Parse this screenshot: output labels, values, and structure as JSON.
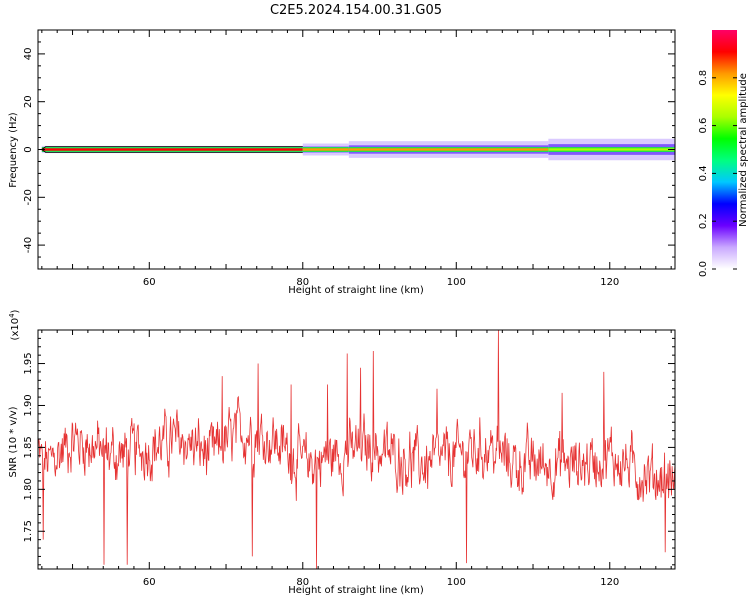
{
  "title": "C2E5.2024.154.00.31.G05",
  "chart_data": [
    {
      "type": "heatmap",
      "xlabel": "Height of straight line (km)",
      "ylabel": "Frequency (Hz)",
      "xlim": [
        45.5,
        128.5
      ],
      "ylim": [
        -50,
        50
      ],
      "xticks": [
        "60",
        "80",
        "100",
        "120"
      ],
      "yticks": [
        "-40",
        "-20",
        "0",
        "20",
        "40"
      ],
      "colorbar": {
        "label": "Normalized spectral amplitude",
        "range": [
          0,
          1
        ],
        "ticks": [
          "0.0",
          "0.2",
          "0.4",
          "0.6",
          "0.8"
        ],
        "colors": [
          "#ffffff",
          "#c9a8ff",
          "#6a00ff",
          "#0000ff",
          "#00c8ff",
          "#00ff80",
          "#00ff00",
          "#aaff00",
          "#ffff00",
          "#ff9900",
          "#ff0000",
          "#ff0066"
        ]
      },
      "band": {
        "center_hz": 0,
        "segments": [
          {
            "x": [
              46,
              80
            ],
            "core": 0.9,
            "halo_hz": 1.5
          },
          {
            "x": [
              80,
              86
            ],
            "core": 0.85,
            "halo_hz": 2.5
          },
          {
            "x": [
              86,
              112
            ],
            "core": 0.85,
            "halo_hz": 3.5
          },
          {
            "x": [
              112,
              128.5
            ],
            "core": 0.6,
            "halo_hz": 4.5
          }
        ]
      }
    },
    {
      "type": "line",
      "xlabel": "Height of straight line (km)",
      "ylabel": "SNR (10 * v/v)",
      "multiplier": "(x10",
      "multiplier_exp": "4",
      "multiplier_close": ")",
      "xlim": [
        45.5,
        128.5
      ],
      "ylim": [
        1.705,
        1.99
      ],
      "xticks": [
        "60",
        "80",
        "100",
        "120"
      ],
      "yticks": [
        "1.75",
        "1.80",
        "1.85",
        "1.90",
        "1.95"
      ],
      "line_color": "#e63232",
      "series": {
        "x_start": 45.5,
        "x_end": 128.5,
        "anchors": [
          [
            45.5,
            1.84
          ],
          [
            47,
            1.83
          ],
          [
            50,
            1.86
          ],
          [
            53,
            1.85
          ],
          [
            56,
            1.84
          ],
          [
            60,
            1.85
          ],
          [
            64,
            1.86
          ],
          [
            68,
            1.84
          ],
          [
            72,
            1.87
          ],
          [
            76,
            1.86
          ],
          [
            80,
            1.83
          ],
          [
            84,
            1.84
          ],
          [
            88,
            1.85
          ],
          [
            92,
            1.84
          ],
          [
            96,
            1.83
          ],
          [
            100,
            1.84
          ],
          [
            104,
            1.85
          ],
          [
            108,
            1.83
          ],
          [
            112,
            1.83
          ],
          [
            116,
            1.83
          ],
          [
            120,
            1.84
          ],
          [
            124,
            1.82
          ],
          [
            128.5,
            1.81
          ]
        ],
        "spikes": [
          [
            105.5,
            1.99
          ],
          [
            89.2,
            1.965
          ],
          [
            85.8,
            1.962
          ],
          [
            87.5,
            1.945
          ],
          [
            74.2,
            1.95
          ],
          [
            119.2,
            1.94
          ],
          [
            113.8,
            1.915
          ],
          [
            97.5,
            1.92
          ],
          [
            83.2,
            1.925
          ],
          [
            78.5,
            1.925
          ],
          [
            69.5,
            1.935
          ],
          [
            73.4,
            1.72
          ],
          [
            81.8,
            1.705
          ],
          [
            54.1,
            1.71
          ],
          [
            57.1,
            1.71
          ],
          [
            101.3,
            1.712
          ],
          [
            127.2,
            1.725
          ],
          [
            46.2,
            1.74
          ]
        ]
      }
    }
  ]
}
